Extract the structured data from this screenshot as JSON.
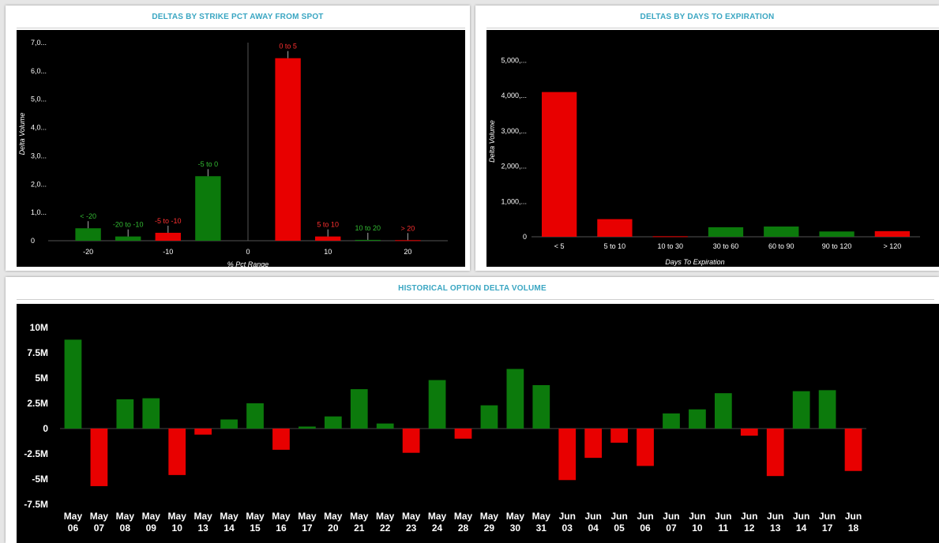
{
  "panels": {
    "strike": {
      "title": "DELTAS BY STRIKE PCT AWAY FROM SPOT"
    },
    "days": {
      "title": "DELTAS BY DAYS TO EXPIRATION"
    },
    "hist": {
      "title": "HISTORICAL OPTION DELTA VOLUME"
    }
  },
  "colors": {
    "positive": "#0c7a0c",
    "negative": "#e80000",
    "background": "#000000",
    "title": "#3aa6c2"
  },
  "chart_data": [
    {
      "type": "bar",
      "title": "DELTAS BY STRIKE PCT AWAY FROM SPOT",
      "xlabel": "% Pct Range",
      "ylabel": "Delta Volume",
      "xlim": [
        -25,
        25
      ],
      "ylim": [
        0,
        7000
      ],
      "y_ticks": [
        0,
        1000,
        2000,
        3000,
        4000,
        5000,
        6000,
        7000
      ],
      "y_tick_labels": [
        "0",
        "1,0...",
        "2,0...",
        "3,0...",
        "4,0...",
        "5,0...",
        "6,0...",
        "7,0..."
      ],
      "x_ticks": [
        -20,
        -10,
        0,
        10,
        20
      ],
      "x_tick_labels": [
        "-20",
        "-10",
        "0",
        "10",
        "20"
      ],
      "bars": [
        {
          "label": "< -20",
          "center": -20,
          "value": 440,
          "sign": "positive"
        },
        {
          "label": "-20 to -10",
          "center": -15,
          "value": 150,
          "sign": "positive"
        },
        {
          "label": "-5 to -10",
          "center": -10,
          "value": 280,
          "sign": "negative"
        },
        {
          "label": "-5 to 0",
          "center": -5,
          "value": 2280,
          "sign": "positive"
        },
        {
          "label": "0 to 5",
          "center": 5,
          "value": 6450,
          "sign": "negative"
        },
        {
          "label": "5 to 10",
          "center": 10,
          "value": 150,
          "sign": "negative"
        },
        {
          "label": "10 to 20",
          "center": 15,
          "value": 30,
          "sign": "positive"
        },
        {
          "label": "> 20",
          "center": 20,
          "value": 20,
          "sign": "negative"
        }
      ],
      "grid": false
    },
    {
      "type": "bar",
      "title": "DELTAS BY DAYS TO EXPIRATION",
      "xlabel": "Days To Expiration",
      "ylabel": "Delta Volume",
      "ylim": [
        0,
        5500
      ],
      "y_ticks": [
        0,
        1000,
        2000,
        3000,
        4000,
        5000
      ],
      "y_tick_labels": [
        "0",
        "1,000,...",
        "2,000,...",
        "3,000,...",
        "4,000,...",
        "5,000,..."
      ],
      "categories": [
        "< 5",
        "5 to 10",
        "10 to 30",
        "30 to 60",
        "60 to 90",
        "90 to 120",
        "> 120"
      ],
      "values": [
        4100,
        500,
        15,
        270,
        290,
        150,
        160
      ],
      "signs": [
        "negative",
        "negative",
        "negative",
        "positive",
        "positive",
        "positive",
        "negative"
      ],
      "grid": false
    },
    {
      "type": "bar",
      "title": "HISTORICAL OPTION DELTA VOLUME",
      "xlabel": "",
      "ylabel": "",
      "ylim": [
        -7.5,
        10
      ],
      "y_ticks": [
        -7.5,
        -5,
        -2.5,
        0,
        2.5,
        5,
        7.5,
        10
      ],
      "y_tick_labels": [
        "-7.5M",
        "-5M",
        "-2.5M",
        "0",
        "2.5M",
        "5M",
        "7.5M",
        "10M"
      ],
      "categories": [
        [
          "May",
          "06"
        ],
        [
          "May",
          "07"
        ],
        [
          "May",
          "08"
        ],
        [
          "May",
          "09"
        ],
        [
          "May",
          "10"
        ],
        [
          "May",
          "13"
        ],
        [
          "May",
          "14"
        ],
        [
          "May",
          "15"
        ],
        [
          "May",
          "16"
        ],
        [
          "May",
          "17"
        ],
        [
          "May",
          "20"
        ],
        [
          "May",
          "21"
        ],
        [
          "May",
          "22"
        ],
        [
          "May",
          "23"
        ],
        [
          "May",
          "24"
        ],
        [
          "May",
          "28"
        ],
        [
          "May",
          "29"
        ],
        [
          "May",
          "30"
        ],
        [
          "May",
          "31"
        ],
        [
          "Jun",
          "03"
        ],
        [
          "Jun",
          "04"
        ],
        [
          "Jun",
          "05"
        ],
        [
          "Jun",
          "06"
        ],
        [
          "Jun",
          "07"
        ],
        [
          "Jun",
          "10"
        ],
        [
          "Jun",
          "11"
        ],
        [
          "Jun",
          "12"
        ],
        [
          "Jun",
          "13"
        ],
        [
          "Jun",
          "14"
        ],
        [
          "Jun",
          "17"
        ],
        [
          "Jun",
          "18"
        ]
      ],
      "values": [
        8.8,
        -5.7,
        2.9,
        3.0,
        -4.6,
        -0.6,
        0.9,
        2.5,
        -2.1,
        0.2,
        1.2,
        3.9,
        0.5,
        -2.4,
        4.8,
        -1.0,
        2.3,
        5.9,
        4.3,
        -5.1,
        -2.9,
        -1.4,
        -3.7,
        1.5,
        1.9,
        3.5,
        -0.7,
        -4.7,
        3.7,
        3.8,
        -4.2
      ],
      "units": "M",
      "grid": false
    }
  ]
}
